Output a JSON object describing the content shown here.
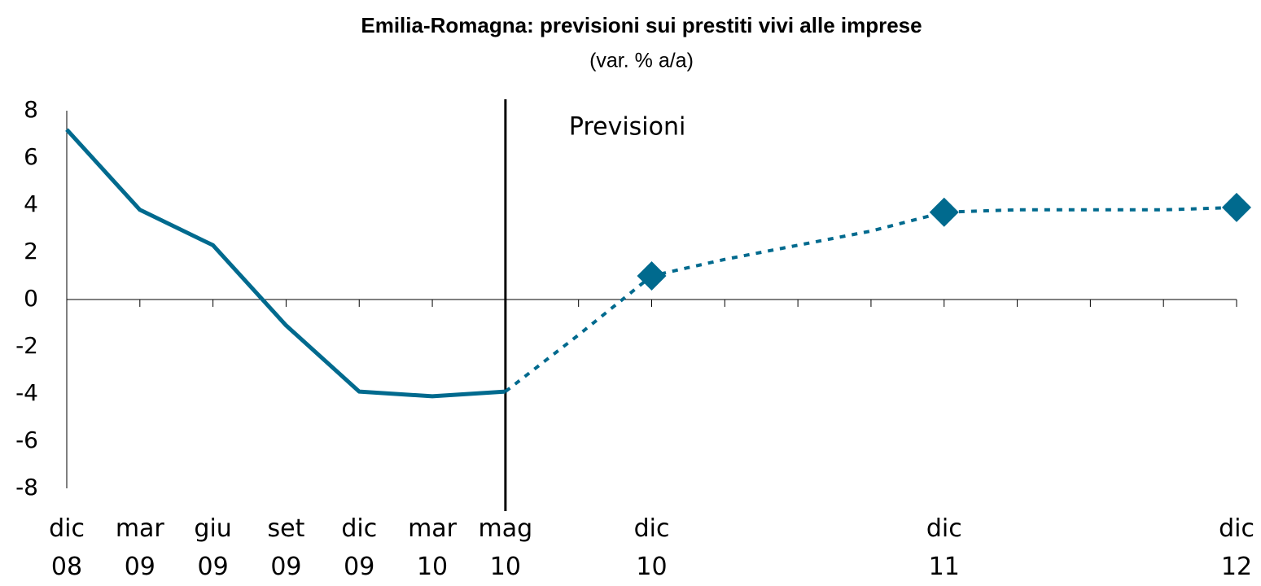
{
  "chart_data": {
    "type": "line",
    "title": "Emilia-Romagna: previsioni sui prestiti vivi alle imprese",
    "subtitle": "(var. % a/a)",
    "annotation": "Previsioni",
    "vline": "mag 10",
    "categories": [
      "dic 08",
      "mar 09",
      "giu 09",
      "set 09",
      "dic 09",
      "mar 10",
      "mag 10",
      null,
      "dic 10",
      null,
      null,
      null,
      "dic 11",
      null,
      null,
      null,
      "dic 12"
    ],
    "series": [
      {
        "color": "#006a8e",
        "style": "solid",
        "marker": "none",
        "values": [
          7.2,
          3.8,
          2.3,
          -1.1,
          -3.9,
          -4.1,
          -3.9,
          null,
          null,
          null,
          null,
          null,
          null,
          null,
          null,
          null,
          null
        ]
      },
      {
        "color": "#006a8e",
        "style": "dotted",
        "marker": "none",
        "values": [
          null,
          null,
          null,
          null,
          null,
          null,
          -3.9,
          -1.5,
          1.0,
          1.7,
          2.3,
          2.9,
          3.7,
          3.8,
          3.8,
          3.8,
          3.9
        ]
      },
      {
        "color": "#006a8e",
        "style": "none",
        "marker": "diamond",
        "values": [
          null,
          null,
          null,
          null,
          null,
          null,
          null,
          null,
          1.0,
          null,
          null,
          null,
          3.7,
          null,
          null,
          null,
          3.9
        ]
      }
    ],
    "ylim": [
      -8,
      8
    ],
    "yticks": [
      -8,
      -6,
      -4,
      -2,
      0,
      2,
      4,
      6,
      8
    ],
    "grid": false
  }
}
